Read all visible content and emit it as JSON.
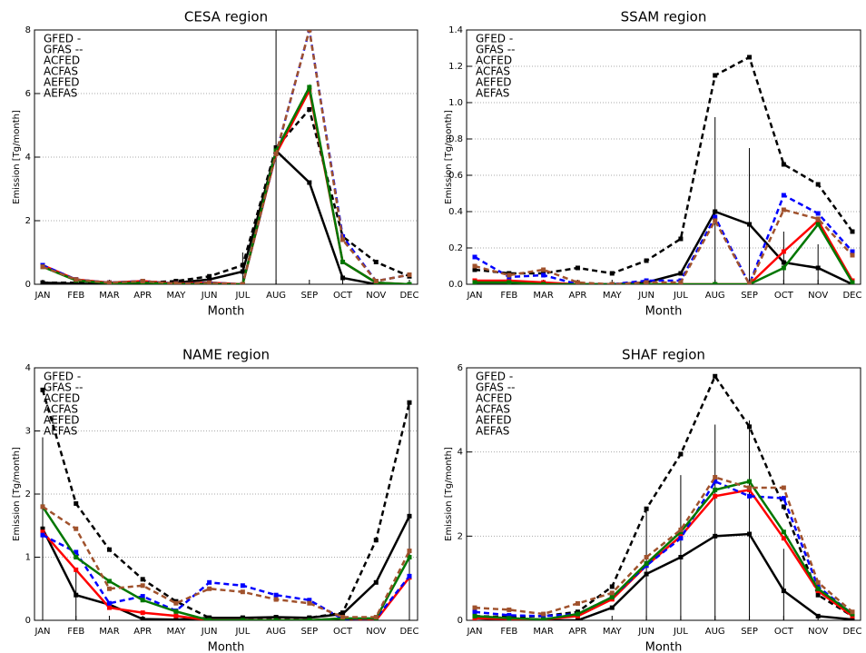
{
  "chart_data": [
    {
      "type": "line",
      "title": "CESA region",
      "xlabel": "Month",
      "ylabel": "Emission [Tg/month]",
      "categories": [
        "JAN",
        "FEB",
        "MAR",
        "APR",
        "MAY",
        "JUN",
        "JUL",
        "AUG",
        "SEP",
        "OCT",
        "NOV",
        "DEC"
      ],
      "ylim": [
        0,
        8
      ],
      "yticks": [
        0,
        2,
        4,
        6,
        8
      ],
      "grid": true,
      "series": [
        {
          "name": "GFED -",
          "color": "#000000",
          "dashed": false,
          "values": [
            0.05,
            0.02,
            0,
            0,
            0.05,
            0.15,
            0.4,
            4.2,
            3.2,
            0.2,
            0,
            0
          ],
          "errors": [
            null,
            null,
            null,
            null,
            null,
            null,
            0.6,
            4.2,
            null,
            null,
            null,
            null
          ]
        },
        {
          "name": "GFAS --",
          "color": "#000000",
          "dashed": true,
          "values": [
            0.05,
            0.05,
            0.02,
            0.05,
            0.1,
            0.25,
            0.6,
            4.3,
            5.5,
            1.5,
            0.7,
            0.25
          ]
        },
        {
          "name": "ACFED",
          "color": "#ff0000",
          "dashed": false,
          "values": [
            0.6,
            0.15,
            0.05,
            0.1,
            0.02,
            0.05,
            0,
            4.1,
            6.1,
            0.7,
            0.05,
            0
          ]
        },
        {
          "name": "ACFAS",
          "color": "#0000ff",
          "dashed": true,
          "values": [
            0.6,
            0.15,
            0.05,
            0.1,
            0.02,
            0.05,
            0,
            4.1,
            8,
            1.5,
            0.1,
            0.3
          ]
        },
        {
          "name": "AEFED",
          "color": "#007700",
          "dashed": false,
          "values": [
            0.55,
            0.12,
            0.03,
            0.05,
            0.01,
            0,
            0,
            4.2,
            6.2,
            0.7,
            0.05,
            0
          ]
        },
        {
          "name": "AEFAS",
          "color": "#a0522d",
          "dashed": true,
          "values": [
            0.55,
            0.15,
            0.05,
            0.1,
            0.02,
            0.05,
            0,
            4.1,
            8,
            1.4,
            0.1,
            0.3
          ]
        }
      ]
    },
    {
      "type": "line",
      "title": "SSAM region",
      "xlabel": "Month",
      "ylabel": "Emission [Tg/month]",
      "categories": [
        "JAN",
        "FEB",
        "MAR",
        "APR",
        "MAY",
        "JUN",
        "JUL",
        "AUG",
        "SEP",
        "OCT",
        "NOV",
        "DEC"
      ],
      "ylim": [
        0,
        1.4
      ],
      "yticks": [
        {
          "value": 0,
          "label": "0.0"
        },
        0.2,
        0.4,
        0.6,
        0.8,
        {
          "value": 1,
          "label": "1.0"
        },
        1.2,
        1.4
      ],
      "grid": true,
      "series": [
        {
          "name": "GFED -",
          "color": "#000000",
          "dashed": false,
          "values": [
            0.01,
            0.01,
            0,
            0,
            0,
            0.01,
            0.06,
            0.4,
            0.33,
            0.12,
            0.09,
            0
          ],
          "errors": [
            null,
            null,
            null,
            null,
            null,
            null,
            null,
            0.52,
            0.42,
            0.17,
            0.13,
            null
          ]
        },
        {
          "name": "GFAS --",
          "color": "#000000",
          "dashed": true,
          "values": [
            0.08,
            0.06,
            0.06,
            0.09,
            0.06,
            0.13,
            0.25,
            1.15,
            1.25,
            0.66,
            0.55,
            0.29
          ]
        },
        {
          "name": "ACFED",
          "color": "#ff0000",
          "dashed": false,
          "values": [
            0.02,
            0.02,
            0.01,
            0,
            0,
            0,
            0,
            0,
            0,
            0.18,
            0.35,
            0.02
          ]
        },
        {
          "name": "ACFAS",
          "color": "#0000ff",
          "dashed": true,
          "values": [
            0.15,
            0.04,
            0.05,
            0,
            0,
            0.02,
            0.02,
            0.37,
            0,
            0.49,
            0.39,
            0.18
          ]
        },
        {
          "name": "AEFED",
          "color": "#007700",
          "dashed": false,
          "values": [
            0.01,
            0.01,
            0,
            0,
            0,
            0,
            0,
            0,
            0,
            0.09,
            0.33,
            0.01
          ]
        },
        {
          "name": "AEFAS",
          "color": "#a0522d",
          "dashed": true,
          "values": [
            0.1,
            0.05,
            0.08,
            0.01,
            0,
            0.01,
            0.01,
            0.35,
            0,
            0.41,
            0.36,
            0.16
          ]
        }
      ]
    },
    {
      "type": "line",
      "title": "NAME region",
      "xlabel": "Month",
      "ylabel": "Emission [Tg/month]",
      "categories": [
        "JAN",
        "FEB",
        "MAR",
        "APR",
        "MAY",
        "JUN",
        "JUL",
        "AUG",
        "SEP",
        "OCT",
        "NOV",
        "DEC"
      ],
      "ylim": [
        0,
        4
      ],
      "yticks": [
        0,
        1,
        2,
        3,
        4
      ],
      "grid": true,
      "series": [
        {
          "name": "GFED -",
          "color": "#000000",
          "dashed": false,
          "values": [
            1.45,
            0.4,
            0.25,
            0.02,
            0.01,
            0.04,
            0.04,
            0.05,
            0.04,
            0.1,
            0.6,
            1.65
          ],
          "errors": [
            1.45,
            0.4,
            null,
            null,
            null,
            null,
            null,
            null,
            null,
            null,
            null,
            1.8
          ]
        },
        {
          "name": "GFAS --",
          "color": "#000000",
          "dashed": true,
          "values": [
            3.65,
            1.85,
            1.12,
            0.65,
            0.3,
            0.04,
            0.04,
            0.04,
            0.04,
            0.12,
            1.27,
            3.45
          ]
        },
        {
          "name": "ACFED",
          "color": "#ff0000",
          "dashed": false,
          "values": [
            1.4,
            0.8,
            0.2,
            0.12,
            0.07,
            0,
            0,
            0,
            0,
            0.03,
            0,
            0.68
          ]
        },
        {
          "name": "ACFAS",
          "color": "#0000ff",
          "dashed": true,
          "values": [
            1.35,
            1.08,
            0.27,
            0.38,
            0.15,
            0.6,
            0.55,
            0.4,
            0.32,
            0.02,
            0.03,
            0.7
          ]
        },
        {
          "name": "AEFED",
          "color": "#007700",
          "dashed": false,
          "values": [
            1.8,
            1,
            0.62,
            0.32,
            0.14,
            0,
            0,
            0,
            0,
            0.03,
            0.03,
            1
          ]
        },
        {
          "name": "AEFAS",
          "color": "#a0522d",
          "dashed": true,
          "values": [
            1.8,
            1.45,
            0.5,
            0.55,
            0.27,
            0.5,
            0.45,
            0.33,
            0.27,
            0.05,
            0.05,
            1.1
          ]
        }
      ]
    },
    {
      "type": "line",
      "title": "SHAF region",
      "xlabel": "Month",
      "ylabel": "Emission [Tg/month]",
      "categories": [
        "JAN",
        "FEB",
        "MAR",
        "APR",
        "MAY",
        "JUN",
        "JUL",
        "AUG",
        "SEP",
        "OCT",
        "NOV",
        "DEC"
      ],
      "ylim": [
        0,
        6
      ],
      "yticks": [
        0,
        2,
        4,
        6
      ],
      "grid": true,
      "series": [
        {
          "name": "GFED -",
          "color": "#000000",
          "dashed": false,
          "values": [
            0.05,
            0.02,
            0,
            0,
            0.3,
            1.1,
            1.5,
            2.0,
            2.05,
            0.7,
            0.1,
            0.02
          ],
          "errors": [
            null,
            null,
            null,
            null,
            null,
            1.55,
            1.95,
            2.65,
            2.7,
            1.0,
            null,
            null
          ]
        },
        {
          "name": "GFAS --",
          "color": "#000000",
          "dashed": true,
          "values": [
            0.1,
            0.08,
            0.1,
            0.2,
            0.8,
            2.65,
            3.95,
            5.8,
            4.6,
            2.7,
            0.6,
            0.1
          ]
        },
        {
          "name": "ACFED",
          "color": "#ff0000",
          "dashed": false,
          "values": [
            0.05,
            0.03,
            0.02,
            0.1,
            0.5,
            1.3,
            2.0,
            2.95,
            3.1,
            1.95,
            0.7,
            0.1
          ]
        },
        {
          "name": "ACFAS",
          "color": "#0000ff",
          "dashed": true,
          "values": [
            0.2,
            0.12,
            0.1,
            0.15,
            0.55,
            1.3,
            1.95,
            3.3,
            2.95,
            2.9,
            0.8,
            0.15
          ]
        },
        {
          "name": "AEFED",
          "color": "#007700",
          "dashed": false,
          "values": [
            0.1,
            0.05,
            0.02,
            0.15,
            0.55,
            1.35,
            2.1,
            3.1,
            3.3,
            2.1,
            0.75,
            0.15
          ]
        },
        {
          "name": "AEFAS",
          "color": "#a0522d",
          "dashed": true,
          "values": [
            0.3,
            0.25,
            0.15,
            0.4,
            0.65,
            1.5,
            2.15,
            3.4,
            3.15,
            3.15,
            0.9,
            0.2
          ]
        }
      ]
    }
  ]
}
